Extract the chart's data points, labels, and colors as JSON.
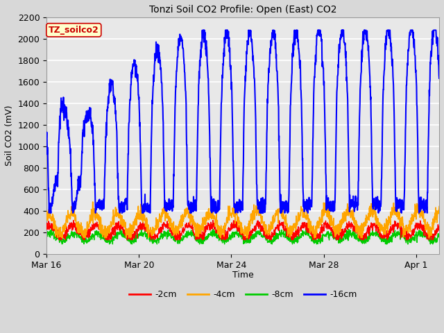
{
  "title": "Tonzi Soil CO2 Profile: Open (East) CO2",
  "xlabel": "Time",
  "ylabel": "Soil CO2 (mV)",
  "ylim": [
    0,
    2200
  ],
  "yticks": [
    0,
    200,
    400,
    600,
    800,
    1000,
    1200,
    1400,
    1600,
    1800,
    2000,
    2200
  ],
  "legend_labels": [
    "-2cm",
    "-4cm",
    "-8cm",
    "-16cm"
  ],
  "legend_colors": [
    "#ff0000",
    "#ffa500",
    "#00cc00",
    "#0000ff"
  ],
  "label_box_text": "TZ_soilco2",
  "label_box_facecolor": "#ffffcc",
  "label_box_edgecolor": "#cc0000",
  "label_box_textcolor": "#cc0000",
  "fig_facecolor": "#d8d8d8",
  "plot_facecolor": "#e8e8e8",
  "grid_color": "#ffffff",
  "xtick_labels": [
    "Mar 16",
    "Mar 20",
    "Mar 24",
    "Mar 28",
    "Apr 1"
  ],
  "xtick_positions": [
    0,
    4,
    8,
    12,
    16
  ],
  "xlim": [
    0,
    17
  ],
  "n_points": 1700,
  "seed": 12345
}
